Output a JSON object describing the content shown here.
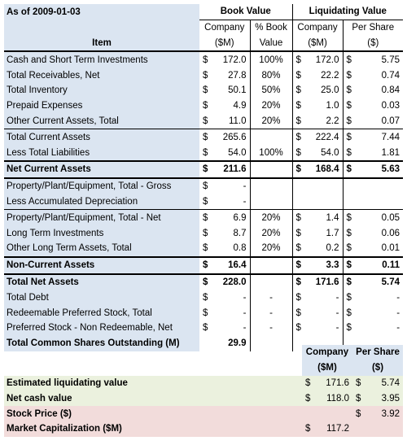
{
  "header": {
    "as_of": "As of 2009-01-03",
    "book_value": "Book Value",
    "liquidating_value": "Liquidating Value",
    "item": "Item",
    "company_1": "Company",
    "company_2": "($M)",
    "pct_book_1": "% Book",
    "pct_book_2": "Value",
    "liq_company_1": "Company",
    "liq_company_2": "($M)",
    "per_share_1": "Per Share",
    "per_share_2": "($)"
  },
  "rows": [
    {
      "item": "Cash and Short Term Investments",
      "bd": "$",
      "bv": "172.0",
      "pct": "100%",
      "ld": "$",
      "lv": "172.0",
      "pd": "$",
      "ps": "5.75"
    },
    {
      "item": "Total Receivables, Net",
      "bd": "$",
      "bv": "27.8",
      "pct": "80%",
      "ld": "$",
      "lv": "22.2",
      "pd": "$",
      "ps": "0.74"
    },
    {
      "item": "Total Inventory",
      "bd": "$",
      "bv": "50.1",
      "pct": "50%",
      "ld": "$",
      "lv": "25.0",
      "pd": "$",
      "ps": "0.84"
    },
    {
      "item": "Prepaid Expenses",
      "bd": "$",
      "bv": "4.9",
      "pct": "20%",
      "ld": "$",
      "lv": "1.0",
      "pd": "$",
      "ps": "0.03"
    },
    {
      "item": "Other Current Assets, Total",
      "bd": "$",
      "bv": "11.0",
      "pct": "20%",
      "ld": "$",
      "lv": "2.2",
      "pd": "$",
      "ps": "0.07"
    },
    {
      "item": "Total Current Assets",
      "bd": "$",
      "bv": "265.6",
      "pct": "",
      "ld": "$",
      "lv": "222.4",
      "pd": "$",
      "ps": "7.44"
    },
    {
      "item": "Less Total Liabilities",
      "bd": "$",
      "bv": "54.0",
      "pct": "100%",
      "ld": "$",
      "lv": "54.0",
      "pd": "$",
      "ps": "1.81"
    },
    {
      "item": "Net Current Assets",
      "bd": "$",
      "bv": "211.6",
      "pct": "",
      "ld": "$",
      "lv": "168.4",
      "pd": "$",
      "ps": "5.63"
    },
    {
      "item": "Property/Plant/Equipment, Total - Gross",
      "bd": "$",
      "bv": "-",
      "pct": "",
      "ld": "",
      "lv": "",
      "pd": "",
      "ps": ""
    },
    {
      "item": "Less Accumulated Depreciation",
      "bd": "$",
      "bv": "-",
      "pct": "",
      "ld": "",
      "lv": "",
      "pd": "",
      "ps": ""
    },
    {
      "item": "Property/Plant/Equipment, Total - Net",
      "bd": "$",
      "bv": "6.9",
      "pct": "20%",
      "ld": "$",
      "lv": "1.4",
      "pd": "$",
      "ps": "0.05"
    },
    {
      "item": "Long Term Investments",
      "bd": "$",
      "bv": "8.7",
      "pct": "20%",
      "ld": "$",
      "lv": "1.7",
      "pd": "$",
      "ps": "0.06"
    },
    {
      "item": "Other Long Term Assets, Total",
      "bd": "$",
      "bv": "0.8",
      "pct": "20%",
      "ld": "$",
      "lv": "0.2",
      "pd": "$",
      "ps": "0.01"
    },
    {
      "item": "Non-Current Assets",
      "bd": "$",
      "bv": "16.4",
      "pct": "",
      "ld": "$",
      "lv": "3.3",
      "pd": "$",
      "ps": "0.11"
    },
    {
      "item": "Total Net Assets",
      "bd": "$",
      "bv": "228.0",
      "pct": "",
      "ld": "$",
      "lv": "171.6",
      "pd": "$",
      "ps": "5.74"
    },
    {
      "item": "Total Debt",
      "bd": "$",
      "bv": "-",
      "pct": "-",
      "ld": "$",
      "lv": "-",
      "pd": "$",
      "ps": "-"
    },
    {
      "item": "Redeemable Preferred Stock, Total",
      "bd": "$",
      "bv": "-",
      "pct": "-",
      "ld": "$",
      "lv": "-",
      "pd": "$",
      "ps": "-"
    },
    {
      "item": "Preferred Stock - Non Redeemable, Net",
      "bd": "$",
      "bv": "-",
      "pct": "-",
      "ld": "$",
      "lv": "-",
      "pd": "$",
      "ps": "-"
    },
    {
      "item": "Total Common Shares Outstanding (M)",
      "bd": "",
      "bv": "29.9",
      "pct": "",
      "ld": "",
      "lv": "",
      "pd": "",
      "ps": ""
    }
  ],
  "summary": {
    "company_1": "Company",
    "company_2": "($M)",
    "per_share_1": "Per Share",
    "per_share_2": "($)",
    "rows": [
      {
        "label": "Estimated liquidating value",
        "cd": "$",
        "cv": "171.6",
        "pd": "$",
        "pv": "5.74"
      },
      {
        "label": "Net cash value",
        "cd": "$",
        "cv": "118.0",
        "pd": "$",
        "pv": "3.95"
      },
      {
        "label": "Stock Price ($)",
        "cd": "",
        "cv": "",
        "pd": "$",
        "pv": "3.92"
      },
      {
        "label": "Market Capitalization ($M)",
        "cd": "$",
        "cv": "117.2",
        "pd": "",
        "pv": ""
      }
    ]
  }
}
